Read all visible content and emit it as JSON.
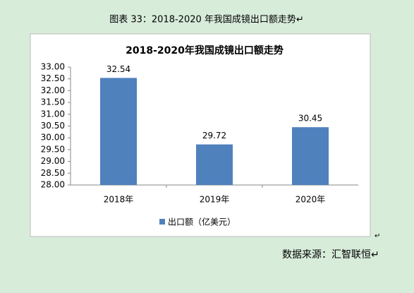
{
  "caption": "图表 33：2018-2020 年我国成镜出口额走势↵",
  "source": "数据来源：汇智联恒↵",
  "corner_mark": "↵",
  "chart_data": {
    "type": "bar",
    "title": "2018-2020年我国成镜出口额走势",
    "categories": [
      "2018年",
      "2019年",
      "2020年"
    ],
    "series": [
      {
        "name": "出口额（亿美元）",
        "color": "#4f81bd",
        "values": [
          32.54,
          29.72,
          30.45
        ]
      }
    ],
    "ylim": [
      28,
      33
    ],
    "yticks": [
      {
        "value": 28,
        "label": "28.00"
      },
      {
        "value": 28.5,
        "label": "28.50"
      },
      {
        "value": 29,
        "label": "29.00"
      },
      {
        "value": 29.5,
        "label": "29.50"
      },
      {
        "value": 30,
        "label": "30.00"
      },
      {
        "value": 30.5,
        "label": "30.50"
      },
      {
        "value": 31,
        "label": "31.00"
      },
      {
        "value": 31.5,
        "label": "31.50"
      },
      {
        "value": 32,
        "label": "32.00"
      },
      {
        "value": 32.5,
        "label": "32.50"
      },
      {
        "value": 33,
        "label": "33.00"
      }
    ],
    "grid": false,
    "legend": "bottom"
  }
}
